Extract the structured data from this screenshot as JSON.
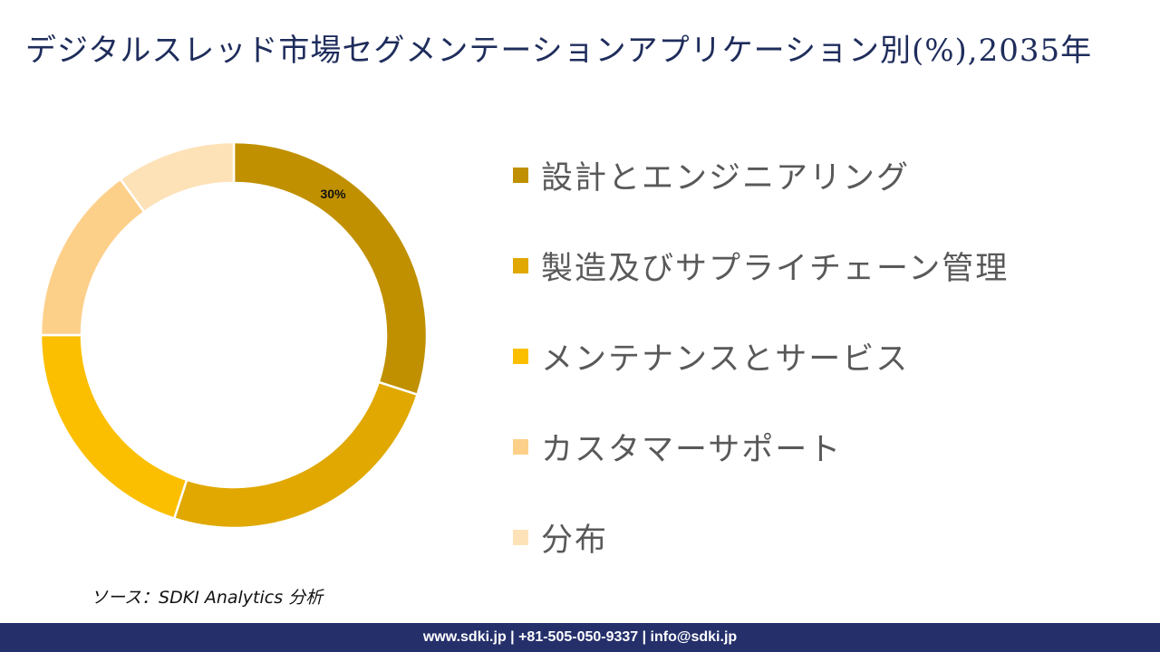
{
  "title": "デジタルスレッド市場セグメンテーションアプリケーション別(%),2035年",
  "chart_data": {
    "type": "pie",
    "subtype": "donut",
    "title": "デジタルスレッド市場セグメンテーションアプリケーション別(%),2035年",
    "categories": [
      "設計とエンジニアリング",
      "製造及びサプライチェーン管理",
      "メンテナンスとサービス",
      "カスタマーサポート",
      "分布"
    ],
    "values": [
      30,
      25,
      20,
      15,
      10
    ],
    "colors": [
      "#c09000",
      "#e0a800",
      "#fbbf00",
      "#fdd08a",
      "#fde2b8"
    ],
    "data_labels": [
      "30%",
      "",
      "",
      "",
      ""
    ],
    "start_angle": 0,
    "direction": "clockwise",
    "legend_position": "right"
  },
  "legend": {
    "items": [
      {
        "label": "設計とエンジニアリング",
        "color": "#c09000"
      },
      {
        "label": "製造及びサプライチェーン管理",
        "color": "#e0a800"
      },
      {
        "label": "メンテナンスとサービス",
        "color": "#fbbf00"
      },
      {
        "label": "カスタマーサポート",
        "color": "#fdd08a"
      },
      {
        "label": "分布",
        "color": "#fde2b8"
      }
    ]
  },
  "source": "ソース：SDKI Analytics 分析",
  "footer": "www.sdki.jp | +81-505-050-9337 | info@sdki.jp"
}
